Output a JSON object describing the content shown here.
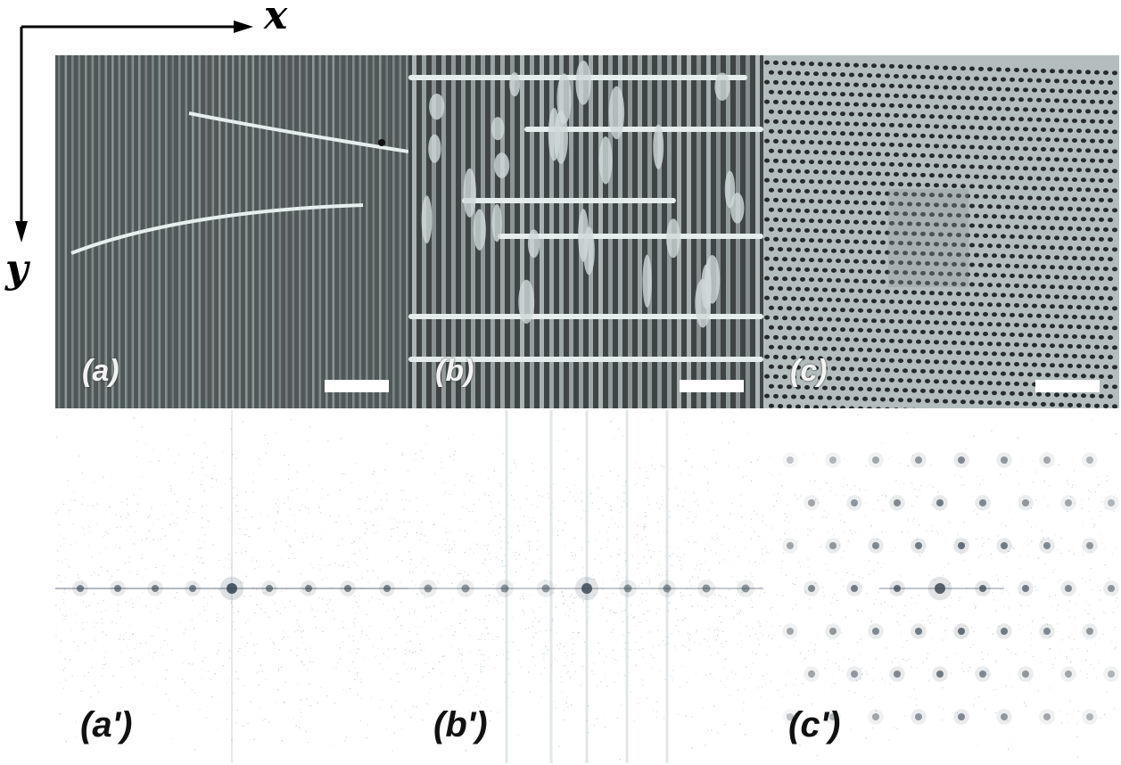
{
  "axes": {
    "x_label": "x",
    "y_label": "y"
  },
  "panels_top": [
    {
      "label": "(a)",
      "kind": "sem-vertical-stripes"
    },
    {
      "label": "(b)",
      "kind": "sem-mixed-structure"
    },
    {
      "label": "(c)",
      "kind": "sem-hole-lattice"
    }
  ],
  "panels_bottom": [
    {
      "label": "(a')",
      "kind": "fft-horizontal-line-peaks"
    },
    {
      "label": "(b')",
      "kind": "fft-horizontal-line-peaks-with-vertical-streaks"
    },
    {
      "label": "(c')",
      "kind": "fft-2d-lattice-peaks"
    }
  ],
  "colors": {
    "sem_bg": "#5a5a5a",
    "sem_line": "#cfd8d8",
    "fft_spot": "#3b4a55",
    "fft_noise": "#a9bcc4"
  }
}
